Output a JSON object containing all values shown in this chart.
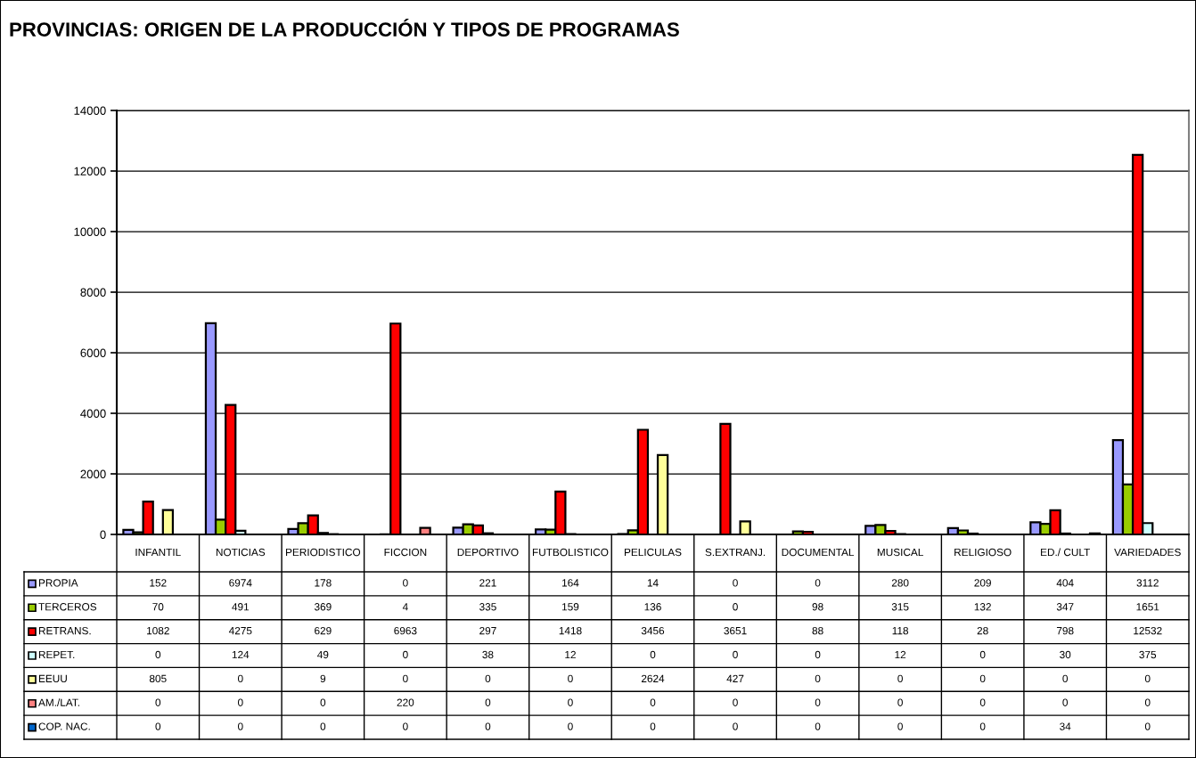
{
  "chart_data": {
    "type": "bar",
    "title": "PROVINCIAS: ORIGEN DE LA PRODUCCIÓN Y TIPOS DE PROGRAMAS",
    "categories": [
      "INFANTIL",
      "NOTICIAS",
      "PERIODISTICO",
      "FICCION",
      "DEPORTIVO",
      "FUTBOLISTICO",
      "PELICULAS",
      "S.EXTRANJ.",
      "DOCUMENTAL",
      "MUSICAL",
      "RELIGIOSO",
      "ED./ CULT",
      "VARIEDADES"
    ],
    "series": [
      {
        "name": "PROPIA",
        "color": "#9999ff",
        "values": [
          152,
          6974,
          178,
          0,
          221,
          164,
          14,
          0,
          0,
          280,
          209,
          404,
          3112
        ]
      },
      {
        "name": "TERCEROS",
        "color": "#99cc00",
        "values": [
          70,
          491,
          369,
          4,
          335,
          159,
          136,
          0,
          98,
          315,
          132,
          347,
          1651
        ]
      },
      {
        "name": "RETRANS.",
        "color": "#ff0000",
        "values": [
          1082,
          4275,
          629,
          6963,
          297,
          1418,
          3456,
          3651,
          88,
          118,
          28,
          798,
          12532
        ]
      },
      {
        "name": "REPET.",
        "color": "#ccffff",
        "values": [
          0,
          124,
          49,
          0,
          38,
          12,
          0,
          0,
          0,
          12,
          0,
          30,
          375
        ]
      },
      {
        "name": "EEUU",
        "color": "#ffff99",
        "values": [
          805,
          0,
          9,
          0,
          0,
          0,
          2624,
          427,
          0,
          0,
          0,
          0,
          0
        ]
      },
      {
        "name": "AM./LAT.",
        "color": "#ff8080",
        "values": [
          0,
          0,
          0,
          220,
          0,
          0,
          0,
          0,
          0,
          0,
          0,
          0,
          0
        ]
      },
      {
        "name": "COP. NAC.",
        "color": "#0066cc",
        "values": [
          0,
          0,
          0,
          0,
          0,
          0,
          0,
          0,
          0,
          0,
          0,
          34,
          0
        ]
      }
    ],
    "ylim": [
      0,
      14000
    ],
    "yticks": [
      0,
      2000,
      4000,
      6000,
      8000,
      10000,
      12000,
      14000
    ],
    "grid": "y",
    "legend": "bottom left",
    "data_labels": true
  }
}
